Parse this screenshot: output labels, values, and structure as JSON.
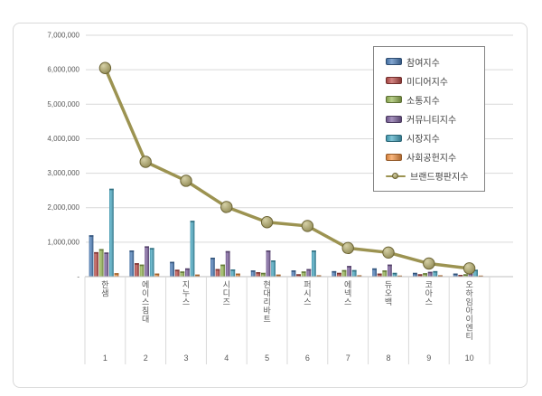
{
  "window": {
    "background_color": "#ffffff",
    "frame_border_color": "#d9d9d9"
  },
  "chart_data": {
    "type": "bar",
    "title": "",
    "subtitle": "",
    "orientation": "vertical",
    "grid": true,
    "gridline_color": "#d9d9d9",
    "axis_line_color": "#bfbfbf",
    "tick_text_color": "#595959",
    "legend_position": "upper-right",
    "legend_border_color": "#848484",
    "ylim": [
      0,
      7000000
    ],
    "y_ticks": [
      {
        "v": 7000000,
        "label": "7,000,000"
      },
      {
        "v": 6000000,
        "label": "6,000,000"
      },
      {
        "v": 5000000,
        "label": "5,000,000"
      },
      {
        "v": 4000000,
        "label": "4,000,000"
      },
      {
        "v": 3000000,
        "label": "3,000,000"
      },
      {
        "v": 2000000,
        "label": "2,000,000"
      },
      {
        "v": 1000000,
        "label": "1,000,000"
      },
      {
        "v": 0,
        "label": "-"
      }
    ],
    "categories": [
      "한샘",
      "에이스침대",
      "지누스",
      "시디즈",
      "현대리바트",
      "퍼시스",
      "에넥스",
      "듀오백",
      "코아스",
      "오하임아이엔티"
    ],
    "rank_labels": [
      "1",
      "2",
      "3",
      "4",
      "5",
      "6",
      "7",
      "8",
      "9",
      "10"
    ],
    "series": [
      {
        "name": "참여지수",
        "color": "#4F81BD",
        "values": [
          1200000,
          760000,
          430000,
          550000,
          180000,
          180000,
          160000,
          240000,
          110000,
          90000
        ]
      },
      {
        "name": "미디어지수",
        "color": "#C0504D",
        "values": [
          710000,
          390000,
          200000,
          220000,
          130000,
          70000,
          110000,
          90000,
          70000,
          50000
        ]
      },
      {
        "name": "소통지수",
        "color": "#9BBB59",
        "values": [
          800000,
          350000,
          150000,
          350000,
          110000,
          150000,
          190000,
          180000,
          100000,
          70000
        ]
      },
      {
        "name": "커뮤니티지수",
        "color": "#8064A2",
        "values": [
          700000,
          880000,
          240000,
          740000,
          760000,
          220000,
          310000,
          350000,
          140000,
          100000
        ]
      },
      {
        "name": "시장지수",
        "color": "#4BACC6",
        "values": [
          2550000,
          830000,
          1620000,
          210000,
          470000,
          760000,
          190000,
          110000,
          160000,
          200000
        ]
      },
      {
        "name": "사회공헌지수",
        "color": "#F79646",
        "values": [
          100000,
          90000,
          60000,
          90000,
          60000,
          40000,
          40000,
          30000,
          40000,
          30000
        ]
      }
    ],
    "line_series": {
      "name": "브랜드평판지수",
      "color": "#9C9351",
      "marker_fill": "#B3A95E",
      "marker_stroke": "#6C6434",
      "values": [
        6050000,
        3330000,
        2780000,
        2020000,
        1580000,
        1470000,
        830000,
        700000,
        380000,
        240000
      ]
    }
  }
}
